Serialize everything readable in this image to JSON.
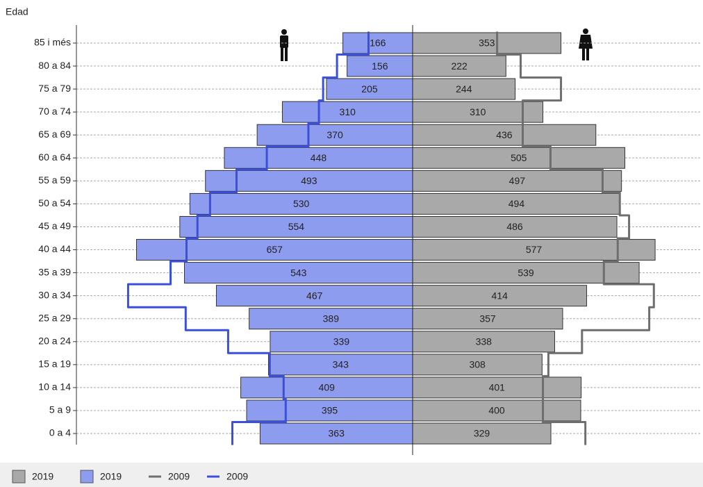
{
  "chart_data": {
    "type": "pyramid",
    "ylabel": "Edad",
    "categories": [
      "85 i més",
      "80 a 84",
      "75 a 79",
      "70 a 74",
      "65 a 69",
      "60 a 64",
      "55 a 59",
      "50 a 54",
      "45 a 49",
      "40 a 44",
      "35 a 39",
      "30 a 34",
      "25 a 29",
      "20 a 24",
      "15 a 19",
      "10 a 14",
      "5 a 9",
      "0 a 4"
    ],
    "xlim": [
      0,
      800
    ],
    "grid": true,
    "series": [
      {
        "name": "2019",
        "color": "#a9a9a9",
        "style": "bar",
        "side": "right",
        "values": [
          353,
          222,
          244,
          310,
          436,
          505,
          497,
          494,
          486,
          577,
          539,
          414,
          357,
          338,
          308,
          401,
          400,
          329
        ]
      },
      {
        "name": "2019",
        "color": "#8e9cf0",
        "style": "bar",
        "side": "left",
        "values": [
          166,
          156,
          205,
          310,
          370,
          448,
          493,
          530,
          554,
          657,
          543,
          467,
          389,
          339,
          343,
          409,
          395,
          363
        ]
      },
      {
        "name": "2009",
        "color": "#6e6e6e",
        "style": "line",
        "side": "right",
        "values": [
          201,
          257,
          353,
          262,
          262,
          328,
          452,
          493,
          515,
          488,
          455,
          574,
          563,
          403,
          323,
          310,
          310,
          411
        ]
      },
      {
        "name": "2009",
        "color": "#3a4fdc",
        "style": "line",
        "side": "left",
        "values": [
          105,
          180,
          213,
          223,
          248,
          347,
          419,
          482,
          512,
          538,
          576,
          677,
          540,
          439,
          340,
          307,
          302,
          429
        ]
      }
    ]
  }
}
